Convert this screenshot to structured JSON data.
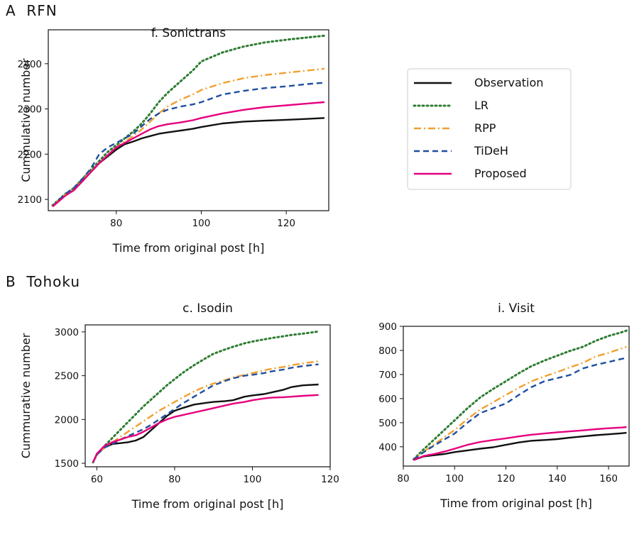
{
  "sections": [
    {
      "label": "A  RFN"
    },
    {
      "label": "B  Tohoku"
    }
  ],
  "legend": {
    "placement": "right of panel A",
    "entries": [
      {
        "name": "Observation",
        "color": "#111111",
        "dash": "solid"
      },
      {
        "name": "LR",
        "color": "#2e7d32",
        "dash": "dotted"
      },
      {
        "name": "RPP",
        "color": "#f0a030",
        "dash": "dashdot"
      },
      {
        "name": "TiDeH",
        "color": "#1f4fa0",
        "dash": "dashed"
      },
      {
        "name": "Proposed",
        "color": "#e6007e",
        "dash": "solid"
      }
    ]
  },
  "chart_data": [
    {
      "type": "line",
      "title": "f. Sonictrans",
      "xlabel": "Time from original post [h]",
      "ylabel": "Cummulative number",
      "xlim": [
        64,
        130
      ],
      "ylim": [
        2075,
        2475
      ],
      "xticks": [
        80,
        100,
        120
      ],
      "yticks": [
        2100,
        2200,
        2300,
        2400
      ],
      "grid": false,
      "series": [
        {
          "name": "Observation",
          "x": [
            65,
            68,
            70,
            72,
            74,
            76,
            78,
            80,
            82,
            84,
            86,
            88,
            90,
            92,
            95,
            98,
            100,
            105,
            110,
            115,
            120,
            125,
            129
          ],
          "y": [
            2085,
            2110,
            2120,
            2140,
            2160,
            2180,
            2195,
            2210,
            2222,
            2228,
            2235,
            2240,
            2245,
            2248,
            2252,
            2256,
            2260,
            2268,
            2272,
            2274,
            2276,
            2278,
            2280
          ]
        },
        {
          "name": "LR",
          "x": [
            65,
            68,
            70,
            72,
            74,
            76,
            78,
            80,
            82,
            84,
            86,
            88,
            90,
            92,
            95,
            98,
            100,
            105,
            110,
            115,
            120,
            125,
            129
          ],
          "y": [
            2087,
            2112,
            2125,
            2145,
            2165,
            2185,
            2205,
            2220,
            2235,
            2250,
            2268,
            2290,
            2315,
            2335,
            2360,
            2385,
            2405,
            2425,
            2438,
            2447,
            2453,
            2458,
            2462
          ]
        },
        {
          "name": "RPP",
          "x": [
            65,
            68,
            70,
            72,
            74,
            76,
            78,
            80,
            82,
            84,
            86,
            88,
            90,
            92,
            95,
            98,
            100,
            105,
            110,
            115,
            120,
            125,
            129
          ],
          "y": [
            2086,
            2110,
            2122,
            2142,
            2162,
            2180,
            2198,
            2215,
            2228,
            2240,
            2255,
            2272,
            2290,
            2305,
            2320,
            2332,
            2342,
            2357,
            2368,
            2375,
            2380,
            2385,
            2389
          ]
        },
        {
          "name": "TiDeH",
          "x": [
            65,
            68,
            70,
            72,
            74,
            76,
            78,
            80,
            82,
            84,
            86,
            88,
            90,
            92,
            95,
            98,
            100,
            105,
            110,
            115,
            120,
            125,
            129
          ],
          "y": [
            2085,
            2112,
            2125,
            2145,
            2168,
            2200,
            2215,
            2225,
            2235,
            2245,
            2262,
            2278,
            2290,
            2298,
            2305,
            2310,
            2315,
            2332,
            2340,
            2346,
            2350,
            2355,
            2358
          ]
        },
        {
          "name": "Proposed",
          "x": [
            65,
            68,
            70,
            72,
            74,
            76,
            78,
            80,
            82,
            84,
            86,
            88,
            90,
            92,
            95,
            98,
            100,
            105,
            110,
            115,
            120,
            125,
            129
          ],
          "y": [
            2084,
            2108,
            2120,
            2140,
            2160,
            2180,
            2198,
            2215,
            2225,
            2235,
            2245,
            2255,
            2262,
            2266,
            2270,
            2275,
            2280,
            2290,
            2298,
            2304,
            2308,
            2312,
            2315
          ]
        }
      ]
    },
    {
      "type": "line",
      "title": "c. Isodin",
      "xlabel": "Time from original post [h]",
      "ylabel": "Cummurative number",
      "xlim": [
        57,
        120
      ],
      "ylim": [
        1460,
        3080
      ],
      "xticks": [
        60,
        80,
        100,
        120
      ],
      "yticks": [
        1500,
        2000,
        2500,
        3000
      ],
      "grid": false,
      "series": [
        {
          "name": "Observation",
          "x": [
            59,
            60,
            62,
            64,
            66,
            68,
            70,
            72,
            74,
            76,
            78,
            80,
            82,
            85,
            88,
            90,
            93,
            95,
            98,
            100,
            103,
            105,
            108,
            110,
            113,
            117
          ],
          "y": [
            1510,
            1600,
            1680,
            1720,
            1730,
            1740,
            1760,
            1800,
            1880,
            1960,
            2040,
            2100,
            2130,
            2170,
            2190,
            2200,
            2210,
            2220,
            2260,
            2275,
            2290,
            2310,
            2340,
            2370,
            2390,
            2400
          ]
        },
        {
          "name": "LR",
          "x": [
            59,
            60,
            62,
            64,
            66,
            68,
            70,
            72,
            74,
            76,
            78,
            80,
            82,
            85,
            88,
            90,
            93,
            95,
            98,
            100,
            103,
            105,
            108,
            110,
            113,
            117
          ],
          "y": [
            1510,
            1600,
            1700,
            1790,
            1880,
            1970,
            2060,
            2150,
            2230,
            2310,
            2390,
            2460,
            2530,
            2620,
            2700,
            2750,
            2800,
            2830,
            2870,
            2890,
            2915,
            2930,
            2950,
            2965,
            2980,
            3005
          ]
        },
        {
          "name": "RPP",
          "x": [
            59,
            60,
            62,
            64,
            66,
            68,
            70,
            72,
            74,
            76,
            78,
            80,
            82,
            85,
            88,
            90,
            93,
            95,
            98,
            100,
            103,
            105,
            108,
            110,
            113,
            117
          ],
          "y": [
            1510,
            1600,
            1680,
            1740,
            1800,
            1860,
            1920,
            1980,
            2040,
            2100,
            2150,
            2200,
            2250,
            2320,
            2380,
            2410,
            2450,
            2480,
            2510,
            2530,
            2560,
            2580,
            2600,
            2620,
            2640,
            2665
          ]
        },
        {
          "name": "TiDeH",
          "x": [
            59,
            60,
            62,
            64,
            66,
            68,
            70,
            72,
            74,
            76,
            78,
            80,
            82,
            85,
            88,
            90,
            93,
            95,
            98,
            100,
            103,
            105,
            108,
            110,
            113,
            117
          ],
          "y": [
            1510,
            1600,
            1680,
            1720,
            1770,
            1810,
            1850,
            1890,
            1940,
            2000,
            2060,
            2120,
            2180,
            2260,
            2340,
            2390,
            2440,
            2470,
            2500,
            2510,
            2530,
            2550,
            2570,
            2590,
            2610,
            2630
          ]
        },
        {
          "name": "Proposed",
          "x": [
            59,
            60,
            62,
            64,
            66,
            68,
            70,
            72,
            74,
            76,
            78,
            80,
            82,
            85,
            88,
            90,
            93,
            95,
            98,
            100,
            103,
            105,
            108,
            110,
            113,
            117
          ],
          "y": [
            1510,
            1610,
            1700,
            1740,
            1770,
            1800,
            1820,
            1860,
            1910,
            1960,
            2000,
            2030,
            2050,
            2080,
            2110,
            2130,
            2160,
            2180,
            2200,
            2220,
            2240,
            2250,
            2255,
            2260,
            2270,
            2280
          ]
        }
      ]
    },
    {
      "type": "line",
      "title": "i. Visit",
      "xlabel": "Time from original post [h]",
      "ylabel": "",
      "xlim": [
        80,
        168
      ],
      "ylim": [
        320,
        900
      ],
      "xticks": [
        80,
        100,
        120,
        140,
        160
      ],
      "yticks": [
        400,
        500,
        600,
        700,
        800,
        900
      ],
      "grid": false,
      "series": [
        {
          "name": "Observation",
          "x": [
            84,
            88,
            92,
            96,
            100,
            105,
            110,
            115,
            120,
            125,
            130,
            135,
            140,
            145,
            150,
            155,
            160,
            165,
            167
          ],
          "y": [
            345,
            360,
            365,
            370,
            378,
            385,
            392,
            398,
            408,
            418,
            425,
            428,
            432,
            438,
            443,
            448,
            452,
            456,
            458
          ]
        },
        {
          "name": "LR",
          "x": [
            84,
            88,
            92,
            96,
            100,
            105,
            110,
            115,
            120,
            125,
            130,
            135,
            140,
            145,
            150,
            155,
            160,
            165,
            167
          ],
          "y": [
            348,
            390,
            430,
            470,
            510,
            560,
            605,
            640,
            672,
            705,
            735,
            758,
            778,
            798,
            815,
            840,
            860,
            875,
            882
          ]
        },
        {
          "name": "RPP",
          "x": [
            84,
            88,
            92,
            96,
            100,
            105,
            110,
            115,
            120,
            125,
            130,
            135,
            140,
            145,
            150,
            155,
            160,
            165,
            167
          ],
          "y": [
            348,
            380,
            410,
            440,
            470,
            515,
            555,
            585,
            615,
            645,
            672,
            692,
            710,
            730,
            748,
            775,
            790,
            808,
            815
          ]
        },
        {
          "name": "TiDeH",
          "x": [
            84,
            88,
            92,
            96,
            100,
            105,
            110,
            115,
            120,
            125,
            130,
            135,
            140,
            145,
            150,
            155,
            160,
            165,
            167
          ],
          "y": [
            348,
            378,
            405,
            430,
            455,
            500,
            540,
            560,
            580,
            615,
            648,
            672,
            685,
            698,
            725,
            740,
            752,
            765,
            768
          ]
        },
        {
          "name": "Proposed",
          "x": [
            84,
            88,
            92,
            96,
            100,
            105,
            110,
            115,
            120,
            125,
            130,
            135,
            140,
            145,
            150,
            155,
            160,
            165,
            167
          ],
          "y": [
            345,
            362,
            370,
            380,
            392,
            408,
            420,
            428,
            435,
            443,
            450,
            455,
            460,
            464,
            468,
            473,
            477,
            480,
            482
          ]
        }
      ]
    }
  ]
}
